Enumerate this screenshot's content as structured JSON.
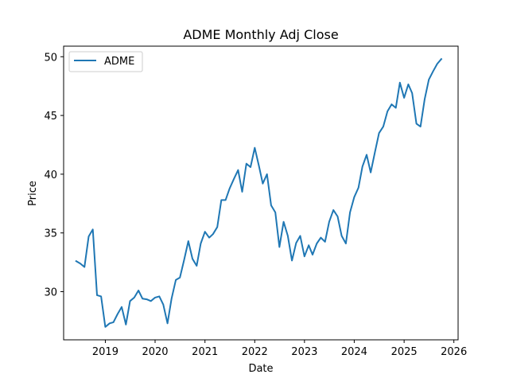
{
  "chart_data": {
    "type": "line",
    "title": "ADME Monthly Adj Close",
    "xlabel": "Date",
    "ylabel": "Price",
    "x_ticks": [
      "2019",
      "2020",
      "2021",
      "2022",
      "2023",
      "2024",
      "2025",
      "2026"
    ],
    "y_ticks": [
      "30",
      "35",
      "40",
      "45",
      "50"
    ],
    "xlim": [
      "2018-03-01",
      "2026-02-01"
    ],
    "ylim": [
      25.9,
      50.9
    ],
    "grid": false,
    "legend": {
      "placement": "top-left"
    },
    "line_color": "#1f77b4",
    "series": [
      {
        "name": "ADME",
        "x": [
          "2018-06",
          "2018-07",
          "2018-08",
          "2018-09",
          "2018-10",
          "2018-11",
          "2018-12",
          "2019-01",
          "2019-02",
          "2019-03",
          "2019-04",
          "2019-05",
          "2019-06",
          "2019-07",
          "2019-08",
          "2019-09",
          "2019-10",
          "2019-11",
          "2019-12",
          "2020-01",
          "2020-02",
          "2020-03",
          "2020-04",
          "2020-05",
          "2020-06",
          "2020-07",
          "2020-08",
          "2020-09",
          "2020-10",
          "2020-11",
          "2020-12",
          "2021-01",
          "2021-02",
          "2021-03",
          "2021-04",
          "2021-05",
          "2021-06",
          "2021-07",
          "2021-08",
          "2021-09",
          "2021-10",
          "2021-11",
          "2021-12",
          "2022-01",
          "2022-02",
          "2022-03",
          "2022-04",
          "2022-05",
          "2022-06",
          "2022-07",
          "2022-08",
          "2022-09",
          "2022-10",
          "2022-11",
          "2022-12",
          "2023-01",
          "2023-02",
          "2023-03",
          "2023-04",
          "2023-05",
          "2023-06",
          "2023-07",
          "2023-08",
          "2023-09",
          "2023-10",
          "2023-11",
          "2023-12",
          "2024-01",
          "2024-02",
          "2024-03",
          "2024-04",
          "2024-05",
          "2024-06",
          "2024-07",
          "2024-08",
          "2024-09",
          "2024-10",
          "2024-11",
          "2024-12",
          "2025-01",
          "2025-02",
          "2025-03",
          "2025-04",
          "2025-05",
          "2025-06",
          "2025-07",
          "2025-08",
          "2025-09",
          "2025-10"
        ],
        "values": [
          32.6,
          32.4,
          32.1,
          34.7,
          35.3,
          29.7,
          29.6,
          27.0,
          27.3,
          27.4,
          28.1,
          28.7,
          27.2,
          29.2,
          29.5,
          30.1,
          29.4,
          29.35,
          29.2,
          29.5,
          29.6,
          28.9,
          27.3,
          29.4,
          31.0,
          31.2,
          32.7,
          34.3,
          32.8,
          32.2,
          34.1,
          35.1,
          34.6,
          34.9,
          35.5,
          37.8,
          37.8,
          38.8,
          39.6,
          40.35,
          38.5,
          40.9,
          40.6,
          42.25,
          40.7,
          39.2,
          40.0,
          37.35,
          36.75,
          33.8,
          35.95,
          34.75,
          32.65,
          34.15,
          34.75,
          33.0,
          33.95,
          33.15,
          34.1,
          34.6,
          34.25,
          35.95,
          36.95,
          36.4,
          34.75,
          34.1,
          36.75,
          38.05,
          38.85,
          40.65,
          41.65,
          40.15,
          41.9,
          43.5,
          44.05,
          45.35,
          45.95,
          45.65,
          47.8,
          46.5,
          47.65,
          46.9,
          44.3,
          44.05,
          46.4,
          48.05,
          48.75,
          49.4,
          49.8
        ]
      }
    ]
  }
}
